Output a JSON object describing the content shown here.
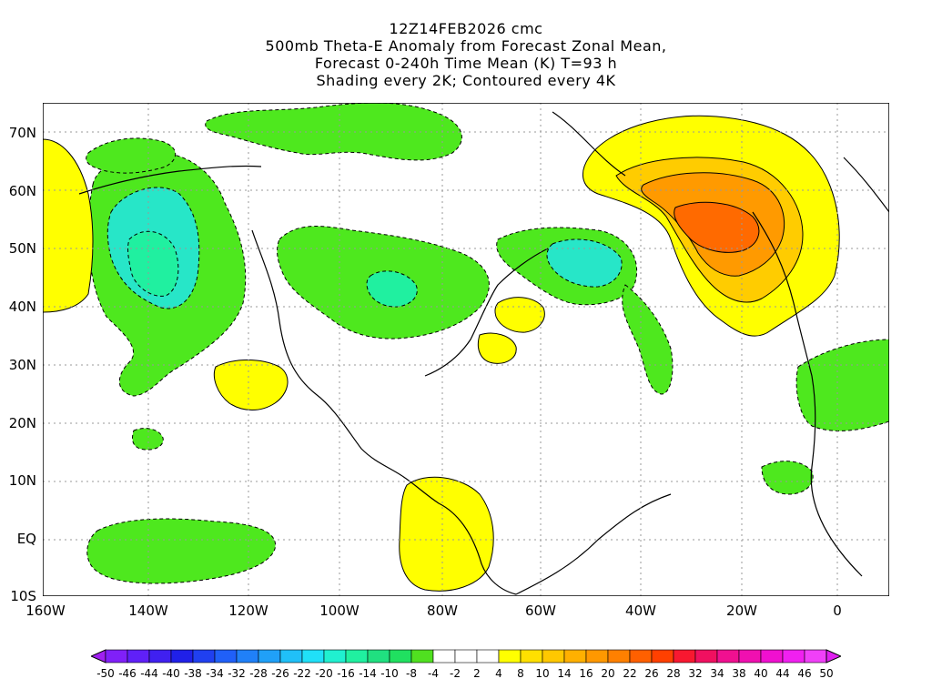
{
  "titles": {
    "line1": "12Z14FEB2026 cmc",
    "line2": "500mb Theta-E Anomaly from Forecast Zonal Mean,",
    "line3": "Forecast 0-240h Time Mean (K) T=93 h",
    "line4": "Shading every 2K; Contoured every 4K"
  },
  "lat_labels": [
    "70N",
    "60N",
    "50N",
    "40N",
    "30N",
    "20N",
    "10N",
    "EQ",
    "10S"
  ],
  "lon_labels": [
    "160W",
    "140W",
    "120W",
    "100W",
    "80W",
    "60W",
    "40W",
    "20W",
    "0"
  ],
  "colorbar": {
    "labels": [
      "-50",
      "-46",
      "-44",
      "-40",
      "-38",
      "-34",
      "-32",
      "-28",
      "-26",
      "-22",
      "-20",
      "-16",
      "-14",
      "-10",
      "-8",
      "-4",
      "-2",
      "2",
      "4",
      "8",
      "10",
      "14",
      "16",
      "20",
      "22",
      "26",
      "28",
      "32",
      "34",
      "38",
      "40",
      "44",
      "46",
      "50"
    ],
    "colors": [
      "#a020f0",
      "#8020f8",
      "#6020f8",
      "#4020f0",
      "#2020e8",
      "#2040f0",
      "#2060f8",
      "#2080f8",
      "#20a0f8",
      "#20c0f8",
      "#20e0f8",
      "#20f0d0",
      "#20f0a0",
      "#20e080",
      "#20e060",
      "#50e020",
      "#ffffff",
      "#ffffff",
      "#ffffff",
      "#ffff00",
      "#ffe000",
      "#ffc800",
      "#ffb000",
      "#ff9800",
      "#ff8000",
      "#ff6000",
      "#ff4000",
      "#f81830",
      "#f01060",
      "#f01090",
      "#f010b0",
      "#f010d0",
      "#f020f0",
      "#f040f8",
      "#e020f0"
    ]
  },
  "colors": {
    "green": "#4ee81e",
    "cyan": "#27e6c8",
    "teal": "#20f0a0",
    "yellow": "#ffff00",
    "gold": "#ffcc00",
    "orange": "#ff9a00",
    "darkorange": "#ff6a00"
  }
}
